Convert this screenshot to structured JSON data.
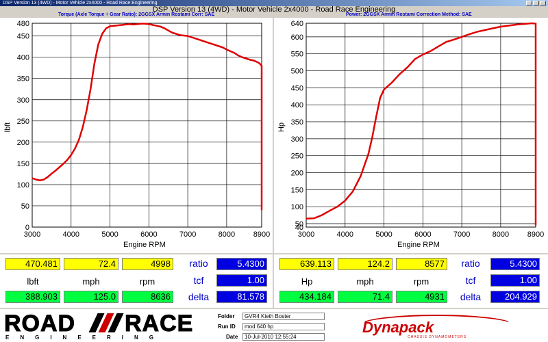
{
  "window": {
    "title": "DSP Version 13 (4WD) - Motor Vehicle 2x4000 - Road Race Engineering"
  },
  "header": {
    "title": "DSP Version 13 (4WD) - Motor Vehicle 2x4000 - Road Race Engineering",
    "left_subtitle": "Torque (Axle Torque ÷ Gear Ratio): 2GGSX Armin Rostami     Corr: SAE",
    "right_subtitle": "Power: 2GGSX Armin Rostami          Correction Method: SAE"
  },
  "torque_chart": {
    "ylabel": "lbft",
    "xlabel": "Engine RPM",
    "yticks": [
      "480",
      "450",
      "400",
      "350",
      "300",
      "250",
      "200",
      "150",
      "100",
      "50",
      "0"
    ],
    "xticks": [
      "3000",
      "4000",
      "5000",
      "6000",
      "7000",
      "8000",
      "8900"
    ]
  },
  "power_chart": {
    "ylabel": "Hp",
    "xlabel": "Engine RPM",
    "yticks": [
      "640",
      "600",
      "550",
      "500",
      "450",
      "400",
      "350",
      "300",
      "250",
      "200",
      "150",
      "100",
      "50",
      "40"
    ],
    "xticks": [
      "3000",
      "4000",
      "5000",
      "6000",
      "7000",
      "8000",
      "8900"
    ]
  },
  "chart_data": [
    {
      "type": "line",
      "xlabel": "Engine RPM",
      "ylabel": "lbft",
      "xlim": [
        3000,
        8900
      ],
      "ylim": [
        0,
        480
      ],
      "grid": true,
      "series": [
        {
          "color": "#e00000",
          "x": [
            3000,
            3100,
            3200,
            3300,
            3400,
            3500,
            3600,
            3700,
            3800,
            3900,
            4000,
            4100,
            4200,
            4300,
            4400,
            4500,
            4600,
            4700,
            4800,
            4900,
            5000,
            5100,
            5200,
            5300,
            5400,
            5500,
            5600,
            5700,
            5800,
            5900,
            6000,
            6100,
            6200,
            6300,
            6400,
            6500,
            6600,
            6700,
            6800,
            6900,
            7000,
            7100,
            7200,
            7300,
            7400,
            7500,
            7600,
            7700,
            7800,
            7900,
            8000,
            8100,
            8200,
            8300,
            8400,
            8500,
            8600,
            8700,
            8800,
            8850,
            8900,
            8900
          ],
          "y": [
            115,
            112,
            110,
            112,
            118,
            126,
            133,
            141,
            149,
            158,
            170,
            185,
            205,
            235,
            275,
            325,
            385,
            430,
            455,
            468,
            473,
            474,
            475,
            476,
            477,
            478,
            477,
            478,
            479,
            479,
            478,
            476,
            474,
            472,
            468,
            463,
            458,
            455,
            452,
            451,
            450,
            447,
            444,
            441,
            438,
            435,
            432,
            429,
            426,
            423,
            418,
            414,
            410,
            404,
            400,
            397,
            394,
            392,
            388,
            385,
            380,
            40
          ]
        }
      ]
    },
    {
      "type": "line",
      "xlabel": "Engine RPM",
      "ylabel": "Hp",
      "xlim": [
        3000,
        8900
      ],
      "ylim": [
        40,
        640
      ],
      "grid": true,
      "series": [
        {
          "color": "#e00000",
          "x": [
            3000,
            3200,
            3400,
            3600,
            3800,
            4000,
            4200,
            4400,
            4600,
            4700,
            4800,
            4900,
            5000,
            5200,
            5400,
            5600,
            5800,
            6000,
            6200,
            6400,
            6600,
            6800,
            7000,
            7200,
            7400,
            7600,
            7800,
            8000,
            8200,
            8400,
            8600,
            8800,
            8900,
            8900
          ],
          "y": [
            65,
            66,
            75,
            88,
            100,
            118,
            145,
            190,
            255,
            305,
            365,
            420,
            445,
            465,
            490,
            510,
            535,
            548,
            558,
            572,
            585,
            592,
            600,
            608,
            615,
            620,
            625,
            630,
            633,
            636,
            638,
            640,
            639,
            45
          ]
        }
      ]
    }
  ],
  "left_panel": {
    "peak": [
      "470.481",
      "72.4",
      "4998"
    ],
    "units": [
      "lbft",
      "mph",
      "rpm"
    ],
    "current": [
      "388.903",
      "125.0",
      "8636"
    ],
    "labels": [
      "ratio",
      "tcf",
      "delta"
    ],
    "values": [
      "5.4300",
      "1.00",
      "81.578"
    ]
  },
  "right_panel": {
    "peak": [
      "639.113",
      "124.2",
      "8577"
    ],
    "units": [
      "Hp",
      "mph",
      "rpm"
    ],
    "current": [
      "434.184",
      "71.4",
      "4931"
    ],
    "labels": [
      "ratio",
      "tcf",
      "delta"
    ],
    "values": [
      "5.4300",
      "1.00",
      "204.929"
    ]
  },
  "footer": {
    "logo_road": "ROAD",
    "logo_race": "RACE",
    "logo_sub": "ENGINEERING",
    "folder_label": "Folder",
    "folder_value": "GVR4 Kieth Boster",
    "runid_label": "Run ID",
    "runid_value": "mod 640 hp",
    "date_label": "Date",
    "date_value": "10-Jul-2010 12:55:24",
    "brand": "Dynapack",
    "brand_sub": "CHASSIS DYNAMOMETERS",
    "brand_color": "#cc0000"
  }
}
